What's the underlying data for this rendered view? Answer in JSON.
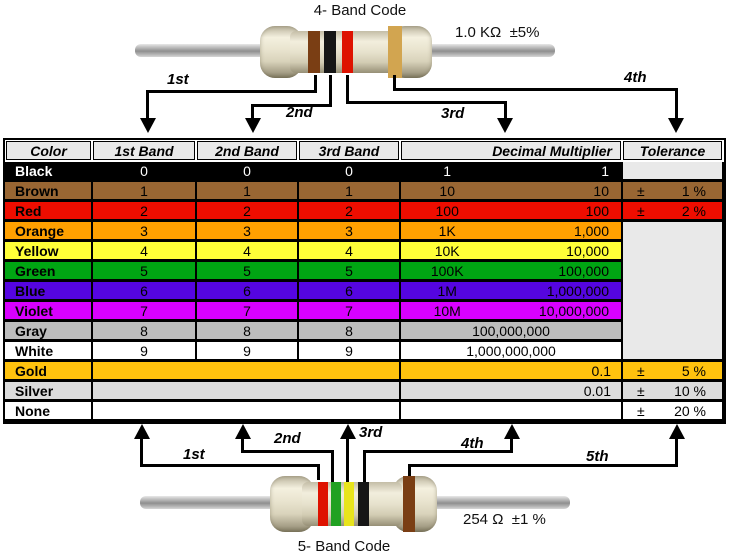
{
  "top_resistor": {
    "title": "4- Band Code",
    "value_label": "1.0 KΩ  ±5%",
    "bands": [
      "brown",
      "black",
      "red",
      "gold"
    ],
    "arrows": [
      "1st",
      "2nd",
      "3rd",
      "4th"
    ]
  },
  "bottom_resistor": {
    "title": "5- Band Code",
    "value_label": "254 Ω  ±1 %",
    "bands": [
      "red",
      "green",
      "yellow",
      "black",
      "brown"
    ],
    "arrows": [
      "1st",
      "2nd",
      "3rd",
      "4th",
      "5th"
    ]
  },
  "band_colors": {
    "brown": "#7A3E14",
    "black": "#161616",
    "red": "#DE1200",
    "gold": "#D2A550",
    "green": "#21A121",
    "yellow": "#E8E41C"
  },
  "table": {
    "headers": [
      "Color",
      "1st Band",
      "2nd Band",
      "3rd Band",
      "Decimal Multiplier",
      "Tolerance"
    ],
    "pm_sign": "±",
    "rows": [
      {
        "color": "Black",
        "bg": "#000000",
        "fg": "#FFFFFF",
        "bands": [
          "0",
          "0",
          "0"
        ],
        "mult": {
          "short": "1",
          "full": "1"
        },
        "tol": "empty-gray"
      },
      {
        "color": "Brown",
        "bg": "#996633",
        "fg": "#000000",
        "bands": [
          "1",
          "1",
          "1"
        ],
        "mult": {
          "short": "10",
          "full": "10"
        },
        "tol": {
          "val": "1 %"
        }
      },
      {
        "color": "Red",
        "bg": "#EE0D00",
        "fg": "#000000",
        "bands": [
          "2",
          "2",
          "2"
        ],
        "mult": {
          "short": "100",
          "full": "100"
        },
        "tol": {
          "val": "2 %"
        }
      },
      {
        "color": "Orange",
        "bg": "#FFA000",
        "fg": "#000000",
        "bands": [
          "3",
          "3",
          "3"
        ],
        "mult": {
          "short": "1K",
          "full": "1,000"
        },
        "tol": "merged"
      },
      {
        "color": "Yellow",
        "bg": "#FFFF38",
        "fg": "#000000",
        "bands": [
          "4",
          "4",
          "4"
        ],
        "mult": {
          "short": "10K",
          "full": "10,000"
        },
        "tol": "merged"
      },
      {
        "color": "Green",
        "bg": "#00A513",
        "fg": "#000000",
        "bands": [
          "5",
          "5",
          "5"
        ],
        "mult": {
          "short": "100K",
          "full": "100,000"
        },
        "tol": "merged"
      },
      {
        "color": "Blue",
        "bg": "#5505E0",
        "fg": "#000000",
        "bands": [
          "6",
          "6",
          "6"
        ],
        "mult": {
          "short": "1M",
          "full": "1,000,000"
        },
        "tol": "merged"
      },
      {
        "color": "Violet",
        "bg": "#D800FF",
        "fg": "#000000",
        "bands": [
          "7",
          "7",
          "7"
        ],
        "mult": {
          "short": "10M",
          "full": "10,000,000"
        },
        "tol": "merged"
      },
      {
        "color": "Gray",
        "bg": "#BDBDBD",
        "fg": "#000000",
        "bands": [
          "8",
          "8",
          "8"
        ],
        "mult": {
          "center": "100,000,000"
        },
        "tol": "merged"
      },
      {
        "color": "White",
        "bg": "#FFFFFF",
        "fg": "#000000",
        "bands": [
          "9",
          "9",
          "9"
        ],
        "mult": {
          "center": "1,000,000,000"
        },
        "tol": "merged"
      },
      {
        "color": "Gold",
        "bg": "#FFC20E",
        "fg": "#000000",
        "bands": null,
        "mult": {
          "right": "0.1"
        },
        "tol": {
          "val": "5 %"
        }
      },
      {
        "color": "Silver",
        "bg": "#DCDCDC",
        "fg": "#000000",
        "bands": null,
        "mult": {
          "right": "0.01"
        },
        "tol": {
          "val": "10 %"
        }
      },
      {
        "color": "None",
        "bg": "#FFFFFF",
        "fg": "#000000",
        "bands": null,
        "mult": {},
        "tol": {
          "val": "20 %"
        }
      }
    ]
  }
}
